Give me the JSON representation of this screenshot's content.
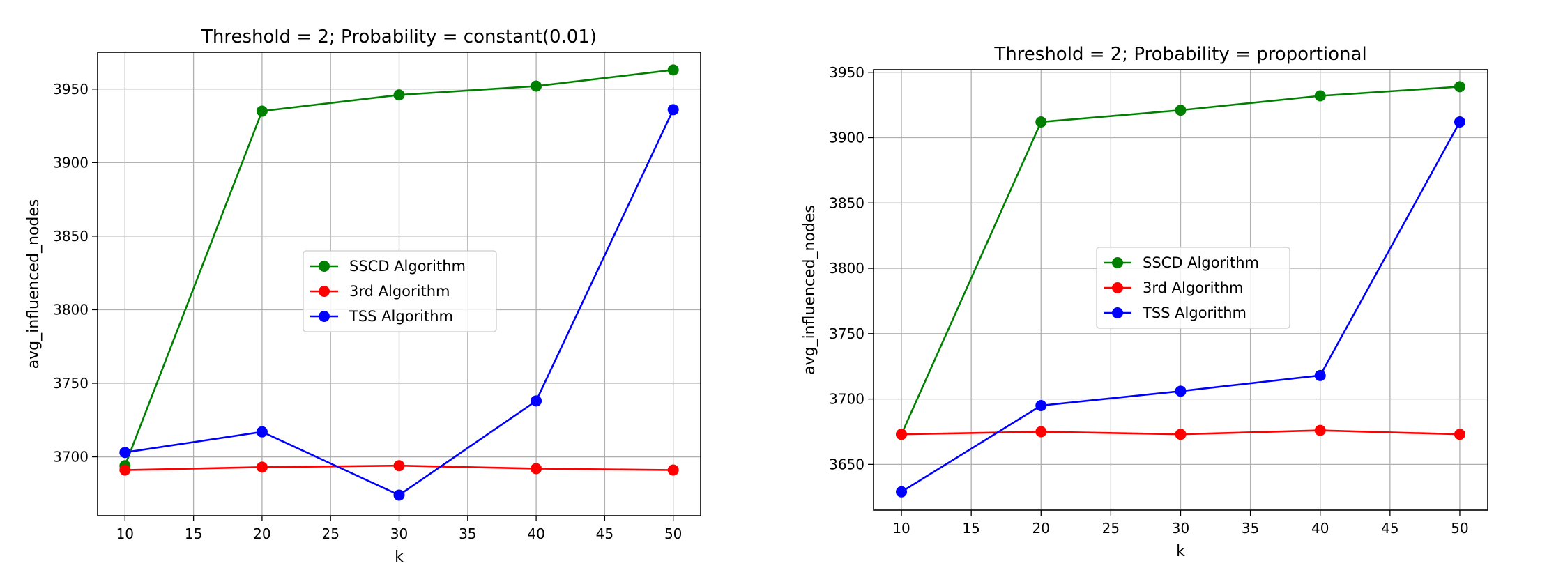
{
  "chart_data": [
    {
      "type": "line",
      "title": "Threshold = 2; Probability = constant(0.01)",
      "xlabel": "k",
      "ylabel": "avg_influenced_nodes",
      "x": [
        10,
        20,
        30,
        40,
        50
      ],
      "xticks": [
        10,
        15,
        20,
        25,
        30,
        35,
        40,
        45,
        50
      ],
      "yticks": [
        3700,
        3750,
        3800,
        3850,
        3900,
        3950
      ],
      "xlim": [
        8,
        52
      ],
      "ylim": [
        3660,
        3975
      ],
      "grid": true,
      "legend_position": "center",
      "series": [
        {
          "name": "SSCD Algorithm",
          "color": "#008000",
          "marker": "circle",
          "values": [
            3694,
            3935,
            3946,
            3952,
            3963
          ]
        },
        {
          "name": "3rd Algorithm",
          "color": "#ff0000",
          "marker": "circle",
          "values": [
            3691,
            3693,
            3694,
            3692,
            3691
          ]
        },
        {
          "name": "TSS Algorithm",
          "color": "#0000ff",
          "marker": "circle",
          "values": [
            3703,
            3717,
            3674,
            3738,
            3936
          ]
        }
      ]
    },
    {
      "type": "line",
      "title": "Threshold = 2; Probability = proportional",
      "xlabel": "k",
      "ylabel": "avg_influenced_nodes",
      "x": [
        10,
        20,
        30,
        40,
        50
      ],
      "xticks": [
        10,
        15,
        20,
        25,
        30,
        35,
        40,
        45,
        50
      ],
      "yticks": [
        3650,
        3700,
        3750,
        3800,
        3850,
        3900,
        3950
      ],
      "xlim": [
        8,
        52
      ],
      "ylim": [
        3615,
        3952
      ],
      "grid": true,
      "legend_position": "center",
      "series": [
        {
          "name": "SSCD Algorithm",
          "color": "#008000",
          "marker": "circle",
          "values": [
            3673,
            3912,
            3921,
            3932,
            3939
          ]
        },
        {
          "name": "3rd Algorithm",
          "color": "#ff0000",
          "marker": "circle",
          "values": [
            3673,
            3675,
            3673,
            3676,
            3673
          ]
        },
        {
          "name": "TSS Algorithm",
          "color": "#0000ff",
          "marker": "circle",
          "values": [
            3629,
            3695,
            3706,
            3718,
            3912
          ]
        }
      ]
    }
  ]
}
